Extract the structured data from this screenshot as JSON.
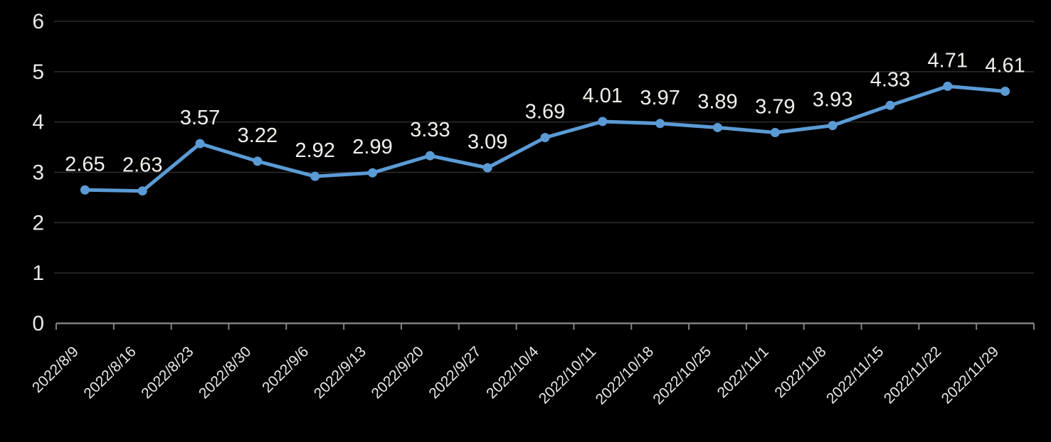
{
  "chart_data": {
    "type": "line",
    "title": "",
    "xlabel": "",
    "ylabel": "",
    "categories": [
      "2022/8/9",
      "2022/8/16",
      "2022/8/23",
      "2022/8/30",
      "2022/9/6",
      "2022/9/13",
      "2022/9/20",
      "2022/9/27",
      "2022/10/4",
      "2022/10/11",
      "2022/10/18",
      "2022/10/25",
      "2022/11/1",
      "2022/11/8",
      "2022/11/15",
      "2022/11/22",
      "2022/11/29"
    ],
    "values": [
      2.65,
      2.63,
      3.57,
      3.22,
      2.92,
      2.99,
      3.33,
      3.09,
      3.69,
      4.01,
      3.97,
      3.89,
      3.79,
      3.93,
      4.33,
      4.71,
      4.61
    ],
    "data_labels": [
      "2.65",
      "2.63",
      "3.57",
      "3.22",
      "2.92",
      "2.99",
      "3.33",
      "3.09",
      "3.69",
      "4.01",
      "3.97",
      "3.89",
      "3.79",
      "3.93",
      "4.33",
      "4.71",
      "4.61"
    ],
    "ylim": [
      0,
      6
    ],
    "yticks": [
      "0",
      "1",
      "2",
      "3",
      "4",
      "5",
      "6"
    ],
    "x_tick_rotation": -45,
    "grid": true,
    "legend": "none",
    "colors": {
      "background": "#000000",
      "line": "#5B9BD5",
      "marker": "#5B9BD5",
      "data_label": "#F2F0EB",
      "axis_label": "#E8E8E8",
      "gridline": "#2D2D2D",
      "axis_line": "#808080"
    }
  }
}
